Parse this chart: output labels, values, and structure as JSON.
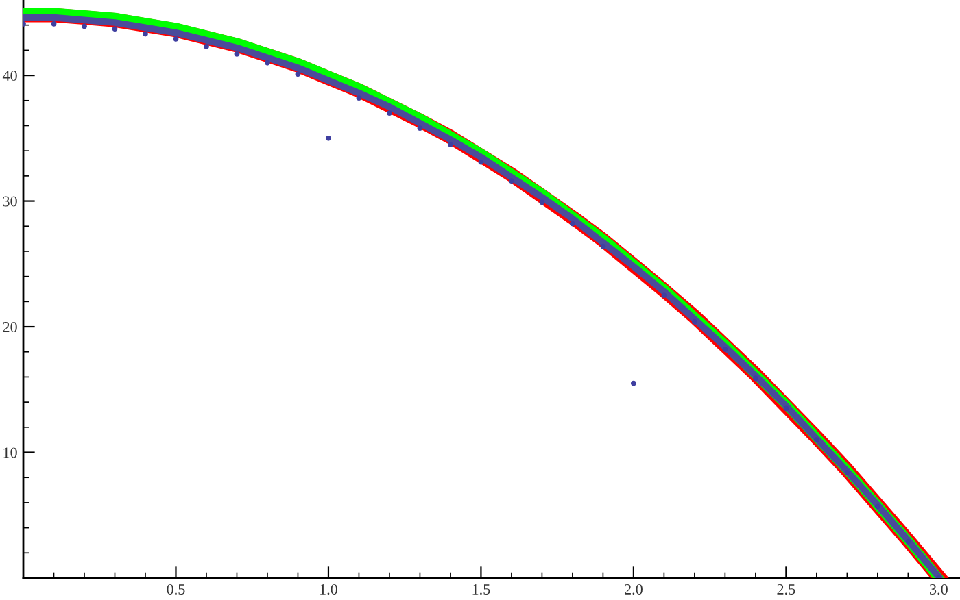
{
  "chart_data": {
    "type": "line",
    "xlim": [
      0,
      3.07
    ],
    "ylim": [
      0,
      46
    ],
    "xticks": [
      0.5,
      {
        "value": 1,
        "label": "1.0"
      },
      1.5,
      {
        "value": 2,
        "label": "2.0"
      },
      2.5,
      {
        "value": 3,
        "label": "3.0"
      },
      {
        "value": 0.1,
        "label": null
      },
      {
        "value": 0.2,
        "label": null
      },
      {
        "value": 0.3,
        "label": null
      },
      {
        "value": 0.4,
        "label": null
      },
      {
        "value": 0.6,
        "label": null
      },
      {
        "value": 0.7,
        "label": null
      },
      {
        "value": 0.8,
        "label": null
      },
      {
        "value": 0.9,
        "label": null
      },
      {
        "value": 1.1,
        "label": null
      },
      {
        "value": 1.2,
        "label": null
      },
      {
        "value": 1.3,
        "label": null
      },
      {
        "value": 1.4,
        "label": null
      },
      {
        "value": 1.6,
        "label": null
      },
      {
        "value": 1.7,
        "label": null
      },
      {
        "value": 1.8,
        "label": null
      },
      {
        "value": 1.9,
        "label": null
      },
      {
        "value": 2.1,
        "label": null
      },
      {
        "value": 2.2,
        "label": null
      },
      {
        "value": 2.3,
        "label": null
      },
      {
        "value": 2.4,
        "label": null
      },
      {
        "value": 2.6,
        "label": null
      },
      {
        "value": 2.7,
        "label": null
      },
      {
        "value": 2.8,
        "label": null
      },
      {
        "value": 2.9,
        "label": null
      }
    ],
    "yticks": [
      10,
      20,
      30,
      40,
      {
        "value": 2,
        "label": null
      },
      {
        "value": 4,
        "label": null
      },
      {
        "value": 6,
        "label": null
      },
      {
        "value": 8,
        "label": null
      },
      {
        "value": 12,
        "label": null
      },
      {
        "value": 14,
        "label": null
      },
      {
        "value": 16,
        "label": null
      },
      {
        "value": 18,
        "label": null
      },
      {
        "value": 22,
        "label": null
      },
      {
        "value": 24,
        "label": null
      },
      {
        "value": 26,
        "label": null
      },
      {
        "value": 28,
        "label": null
      },
      {
        "value": 32,
        "label": null
      },
      {
        "value": 34,
        "label": null
      },
      {
        "value": 36,
        "label": null
      },
      {
        "value": 38,
        "label": null
      },
      {
        "value": 42,
        "label": null
      },
      {
        "value": 44,
        "label": null
      }
    ],
    "grid": false,
    "legend": false,
    "series": [
      {
        "color": "#ff0000",
        "x": [
          0,
          0.1,
          0.2,
          0.3,
          0.4,
          0.5,
          0.6,
          0.7,
          0.8,
          0.9,
          1.0,
          1.1,
          1.2,
          1.3,
          1.4,
          1.5,
          1.6,
          1.7,
          1.8,
          1.9,
          2.0,
          2.1,
          2.2,
          2.3,
          2.4,
          2.5,
          2.6,
          2.7,
          2.8,
          2.9,
          3.0
        ],
        "values": [
          44.8,
          44.8,
          44.6,
          44.4,
          44.0,
          43.6,
          43.0,
          42.4,
          41.6,
          40.8,
          39.8,
          38.8,
          37.6,
          36.4,
          35.1,
          33.6,
          32.1,
          30.4,
          28.7,
          26.9,
          24.9,
          22.9,
          20.8,
          18.5,
          16.2,
          13.7,
          11.2,
          8.6,
          5.8,
          3.0,
          0.1
        ]
      },
      {
        "color": "#00ff00",
        "x": [
          0,
          0.1,
          0.2,
          0.3,
          0.4,
          0.5,
          0.6,
          0.7,
          0.8,
          0.9,
          1.0,
          1.1,
          1.2,
          1.3,
          1.4,
          1.5,
          1.6,
          1.7,
          1.8,
          1.9,
          2.0,
          2.1,
          2.2,
          2.3,
          2.4,
          2.5,
          2.6,
          2.7,
          2.8,
          2.9,
          3.0
        ],
        "values": [
          45.0,
          45.0,
          44.8,
          44.6,
          44.2,
          43.8,
          43.2,
          42.6,
          41.8,
          41.0,
          40.0,
          39.0,
          37.8,
          36.6,
          35.2,
          33.8,
          32.2,
          30.6,
          28.8,
          27.0,
          25.0,
          23.0,
          20.8,
          18.6,
          16.2,
          13.8,
          11.2,
          8.6,
          5.8,
          3.0,
          0.0
        ]
      },
      {
        "color": "#4b4b9b",
        "x": [
          0,
          0.1,
          0.2,
          0.3,
          0.4,
          0.5,
          0.6,
          0.7,
          0.8,
          0.9,
          1.0,
          1.1,
          1.2,
          1.3,
          1.4,
          1.5,
          1.6,
          1.7,
          1.8,
          1.9,
          2.0,
          2.1,
          2.2,
          2.3,
          2.4,
          2.5,
          2.6,
          2.7,
          2.8,
          2.9,
          3.0
        ],
        "values": [
          44.6,
          44.6,
          44.4,
          44.2,
          43.8,
          43.4,
          42.8,
          42.2,
          41.4,
          40.6,
          39.6,
          38.6,
          37.5,
          36.2,
          34.9,
          33.5,
          31.9,
          30.3,
          28.6,
          26.7,
          24.8,
          22.8,
          20.6,
          18.4,
          16.1,
          13.7,
          11.1,
          8.5,
          5.8,
          3.0,
          0.1
        ]
      },
      {
        "type": "scatter",
        "color": "#3f3fa0",
        "x": [
          0,
          0.1,
          0.2,
          0.3,
          0.4,
          0.5,
          0.6,
          0.7,
          0.8,
          0.9,
          1.0,
          1.1,
          1.2,
          1.3,
          1.4,
          1.5,
          1.6,
          1.7,
          1.8,
          1.9,
          2.0,
          2.1,
          2.2,
          2.3,
          2.4,
          2.5,
          2.6,
          2.7,
          2.8,
          2.9,
          3.0
        ],
        "values": [
          44.1,
          44.1,
          43.9,
          43.7,
          43.3,
          42.9,
          42.3,
          41.7,
          41.0,
          40.1,
          35.0,
          38.2,
          37.0,
          35.8,
          34.5,
          33.1,
          31.6,
          29.9,
          28.2,
          26.4,
          15.5,
          22.5,
          20.4,
          18.2,
          15.9,
          13.5,
          11.0,
          8.4,
          5.7,
          2.9,
          0.0
        ]
      }
    ]
  }
}
